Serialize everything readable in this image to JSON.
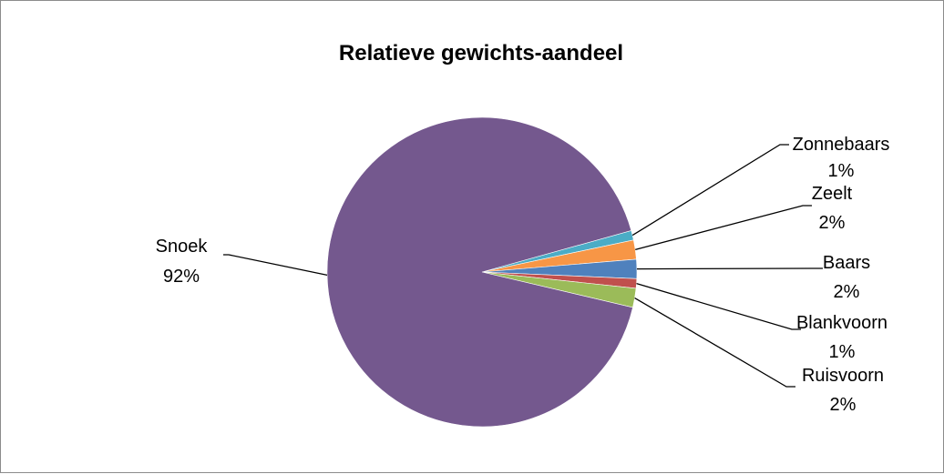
{
  "chart_data": {
    "type": "pie",
    "title": "Relatieve gewichts-aandeel",
    "slices": [
      {
        "name": "Zonnebaars",
        "value": 1,
        "label": "1%",
        "color": "#4bacc6"
      },
      {
        "name": "Zeelt",
        "value": 2,
        "label": "2%",
        "color": "#f79646"
      },
      {
        "name": "Baars",
        "value": 2,
        "label": "2%",
        "color": "#4f81bd"
      },
      {
        "name": "Blankvoorn",
        "value": 1,
        "label": "1%",
        "color": "#c0504d"
      },
      {
        "name": "Ruisvoorn",
        "value": 2,
        "label": "2%",
        "color": "#9bbb59"
      },
      {
        "name": "Snoek",
        "value": 92,
        "label": "92%",
        "color": "#74588e"
      }
    ],
    "legend": "none",
    "data_labels": "outside-with-leader-lines"
  }
}
